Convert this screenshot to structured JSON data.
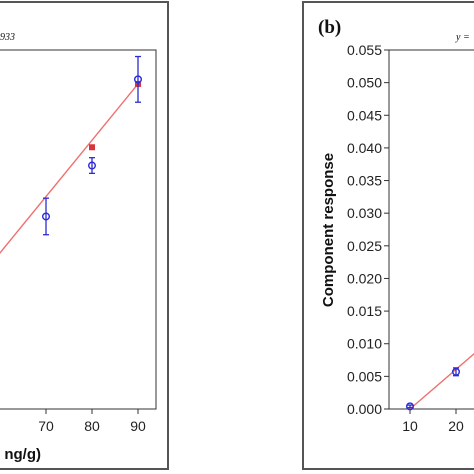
{
  "chart_data": [
    {
      "type": "scatter",
      "panel_label": "",
      "equation_text": "933",
      "xlabel": "ng/g)",
      "ylabel": "",
      "x_ticks": [
        "0",
        "70",
        "80",
        "90"
      ],
      "y_ticks": [],
      "grid": false,
      "series": [
        {
          "marker": "square",
          "color": "#d9343c",
          "points": [
            {
              "x": 80,
              "y": 0.0401
            },
            {
              "x": 90,
              "y": 0.0498
            }
          ]
        },
        {
          "marker": "circle",
          "color": "#2b2bd6",
          "points": [
            {
              "x": 70,
              "y": 0.0295,
              "err": 0.0028
            },
            {
              "x": 80,
              "y": 0.0373,
              "err": 0.0012
            },
            {
              "x": 90,
              "y": 0.0505,
              "err": 0.0035
            }
          ]
        }
      ],
      "fit_line": {
        "color": "#f07070",
        "x": [
          55,
          90
        ],
        "y": [
          0.0196,
          0.0498
        ]
      }
    },
    {
      "type": "scatter",
      "panel_label": "(b)",
      "equation_text": "y =",
      "xlabel": "",
      "ylabel": "Component response",
      "ylim": [
        0,
        0.055
      ],
      "x_ticks": [
        "10",
        "20"
      ],
      "y_ticks": [
        "0.000",
        "0.005",
        "0.010",
        "0.015",
        "0.020",
        "0.025",
        "0.030",
        "0.035",
        "0.040",
        "0.045",
        "0.050",
        "0.055"
      ],
      "grid": false,
      "series": [
        {
          "marker": "circle",
          "color": "#2b2bd6",
          "points": [
            {
              "x": 10,
              "y": 0.0004,
              "err": 0.0002
            },
            {
              "x": 20,
              "y": 0.0057,
              "err": 0.0006
            }
          ]
        }
      ],
      "fit_line": {
        "color": "#f07070",
        "x": [
          10,
          24
        ],
        "y": [
          0.0,
          0.0085
        ]
      }
    }
  ]
}
